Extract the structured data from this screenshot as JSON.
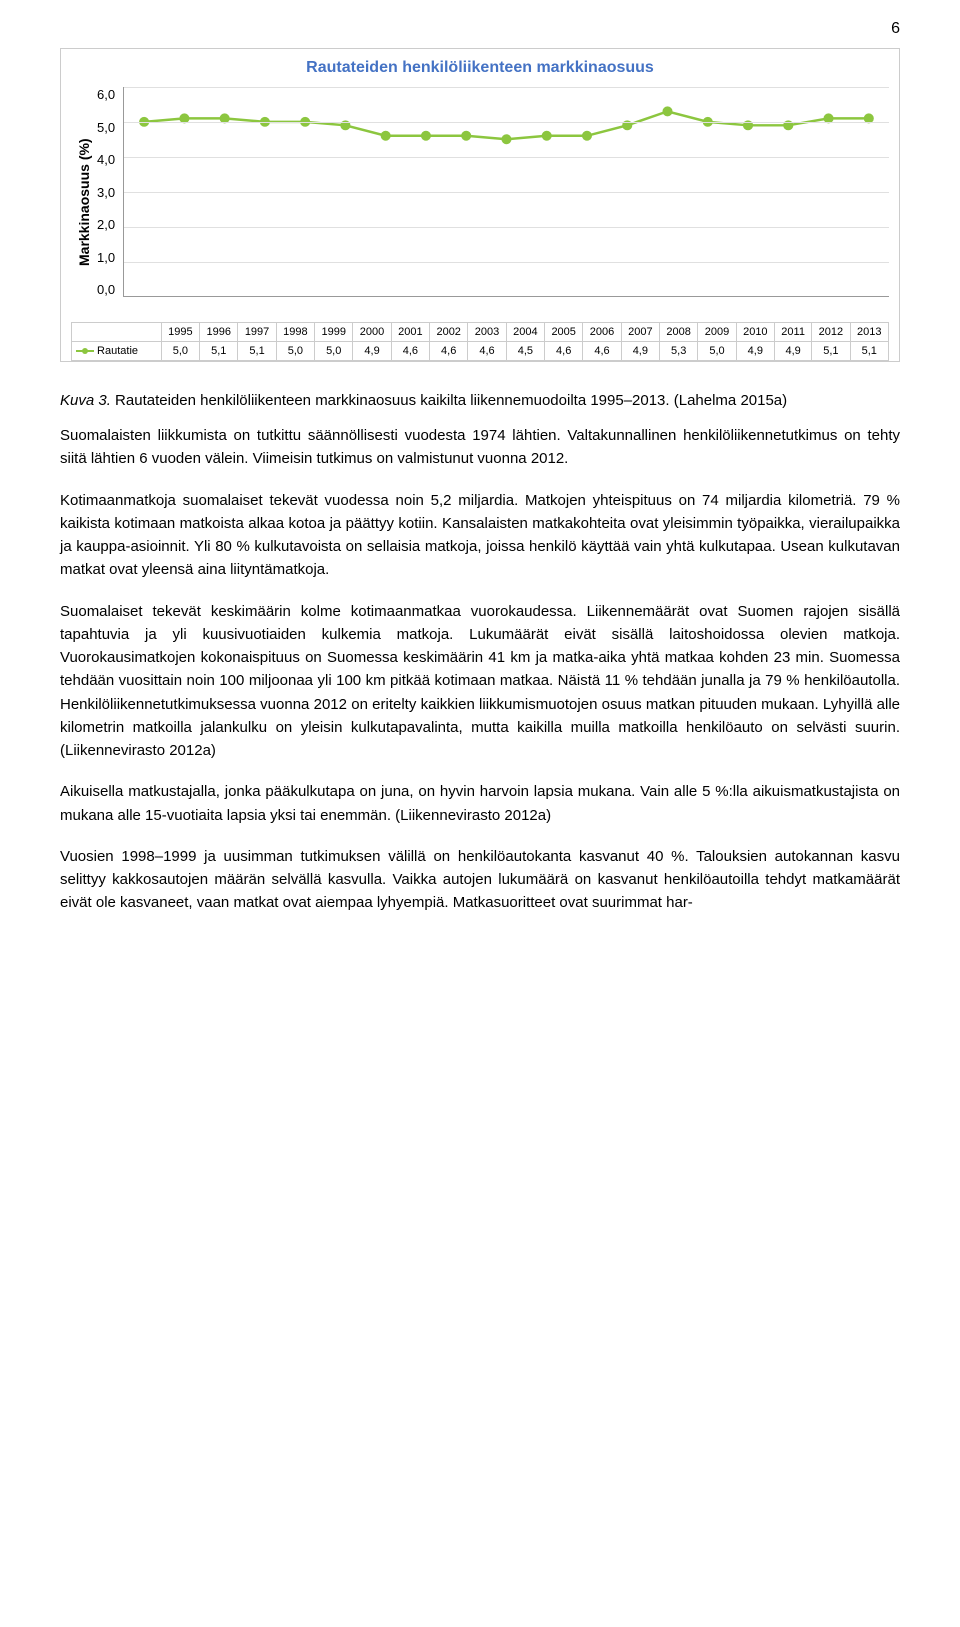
{
  "page_number": "6",
  "chart": {
    "type": "line",
    "title": "Rautateiden henkilöliikenteen markkinaosuus",
    "title_color": "#4472c4",
    "title_fontsize": 16,
    "y_axis_label": "Markkinaosuus (%)",
    "ylim": [
      0,
      6
    ],
    "ytick_step": 1,
    "yticks": [
      "0,0",
      "1,0",
      "2,0",
      "3,0",
      "4,0",
      "5,0",
      "6,0"
    ],
    "grid_color": "#e0e0e0",
    "background_color": "#ffffff",
    "series_name": "Rautatie",
    "series_name_with_marker": "Rautatie",
    "line_color": "#8cc63f",
    "marker_color": "#8cc63f",
    "marker_size": 5,
    "line_width": 2.5,
    "years": [
      "1995",
      "1996",
      "1997",
      "1998",
      "1999",
      "2000",
      "2001",
      "2002",
      "2003",
      "2004",
      "2005",
      "2006",
      "2007",
      "2008",
      "2009",
      "2010",
      "2011",
      "2012",
      "2013"
    ],
    "values": [
      5.0,
      5.1,
      5.1,
      5.0,
      5.0,
      4.9,
      4.6,
      4.6,
      4.6,
      4.5,
      4.6,
      4.6,
      4.9,
      5.3,
      5.0,
      4.9,
      4.9,
      5.1,
      5.1
    ],
    "values_display": [
      "5,0",
      "5,1",
      "5,1",
      "5,0",
      "5,0",
      "4,9",
      "4,6",
      "4,6",
      "4,6",
      "4,5",
      "4,6",
      "4,6",
      "4,9",
      "5,3",
      "5,0",
      "4,9",
      "4,9",
      "5,1",
      "5,1"
    ]
  },
  "caption": {
    "label": "Kuva 3.",
    "text": "Rautateiden henkilöliikenteen markkinaosuus kaikilta liikennemuodoilta 1995–2013. (Lahelma 2015a)"
  },
  "paragraphs": [
    "Suomalaisten liikkumista on tutkittu säännöllisesti vuodesta 1974 lähtien. Valtakunnallinen henkilöliikennetutkimus on tehty siitä lähtien 6 vuoden välein. Viimeisin tutkimus on valmistunut vuonna 2012.",
    "Kotimaanmatkoja suomalaiset tekevät vuodessa noin 5,2 miljardia. Matkojen yhteispituus on 74 miljardia kilometriä. 79 % kaikista kotimaan matkoista alkaa kotoa ja päättyy kotiin. Kansalaisten matkakohteita ovat yleisimmin työpaikka, vierailupaikka ja kauppa-asioinnit. Yli 80 % kulkutavoista on sellaisia matkoja, joissa henkilö käyttää vain yhtä kulkutapaa. Usean kulkutavan matkat ovat yleensä aina liityntämatkoja.",
    "Suomalaiset tekevät keskimäärin kolme kotimaanmatkaa vuorokaudessa. Liikennemäärät ovat Suomen rajojen sisällä tapahtuvia ja yli kuusivuotiaiden kulkemia matkoja. Lukumäärät eivät sisällä laitoshoidossa olevien matkoja. Vuorokausimatkojen kokonaispituus on Suomessa keskimäärin 41 km ja matka-aika yhtä matkaa kohden 23 min. Suomessa tehdään vuosittain noin 100 miljoonaa yli 100 km pitkää kotimaan matkaa. Näistä 11 % tehdään junalla ja 79 % henkilöautolla. Henkilöliikennetutkimuksessa vuonna 2012 on eritelty kaikkien liikkumismuotojen osuus matkan pituuden mukaan. Lyhyillä alle kilometrin matkoilla jalankulku on yleisin kulkutapavalinta, mutta kaikilla muilla matkoilla henkilöauto on selvästi suurin. (Liikennevirasto 2012a)",
    "Aikuisella matkustajalla, jonka pääkulkutapa on juna, on hyvin harvoin lapsia mukana. Vain alle 5 %:lla aikuismatkustajista on mukana alle 15-vuotiaita lapsia yksi tai enemmän. (Liikennevirasto 2012a)",
    "Vuosien 1998–1999 ja uusimman tutkimuksen välillä on henkilöautokanta kasvanut 40 %. Talouksien autokannan kasvu selittyy kakkosautojen määrän selvällä kasvulla. Vaikka autojen lukumäärä on kasvanut henkilöautoilla tehdyt matkamäärät eivät ole kasvaneet, vaan matkat ovat aiempaa lyhyempiä. Matkasuoritteet ovat suurimmat har-"
  ]
}
